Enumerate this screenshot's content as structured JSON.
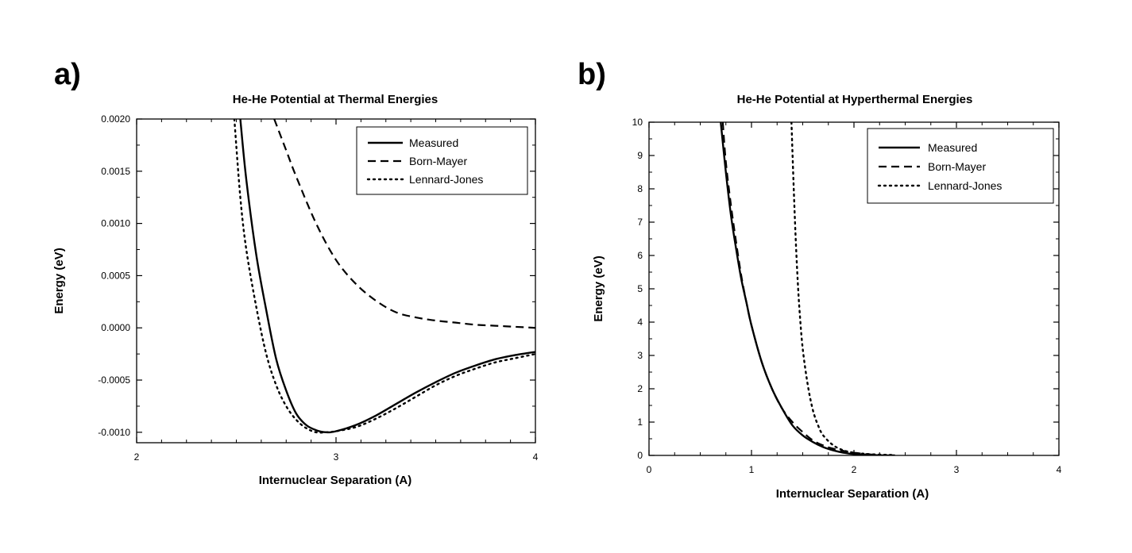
{
  "chart_data": [
    {
      "panel": "a)",
      "type": "line",
      "title": "He-He Potential at Thermal Energies",
      "xlabel": "Internuclear Separation (A)",
      "ylabel": "Energy (eV)",
      "xlim": [
        2,
        4
      ],
      "ylim": [
        -0.0011,
        0.002
      ],
      "xticks": [
        2,
        3,
        4
      ],
      "xtick_labels": [
        "2",
        "3",
        "4"
      ],
      "yticks": [
        0.002,
        0.0015,
        0.001,
        0.0005,
        0.0,
        -0.0005,
        -0.001
      ],
      "ytick_labels": [
        "0.0020",
        "0.0015",
        "0.0010",
        "0.0005",
        "0.0000",
        "-0.0005",
        "-0.0010"
      ],
      "grid": false,
      "legend_position": "top-right",
      "series": [
        {
          "name": "Measured",
          "style": "solid",
          "x": [
            2.52,
            2.55,
            2.6,
            2.65,
            2.7,
            2.75,
            2.8,
            2.85,
            2.9,
            2.95,
            3.0,
            3.1,
            3.2,
            3.3,
            3.4,
            3.5,
            3.6,
            3.7,
            3.8,
            3.9,
            4.0
          ],
          "y": [
            0.002,
            0.00142,
            0.0007,
            0.00017,
            -0.0003,
            -0.0006,
            -0.00082,
            -0.00093,
            -0.00098,
            -0.001,
            -0.00099,
            -0.00093,
            -0.00084,
            -0.00073,
            -0.00062,
            -0.00052,
            -0.00043,
            -0.00036,
            -0.0003,
            -0.00026,
            -0.00023
          ]
        },
        {
          "name": "Born-Mayer",
          "style": "dashed",
          "x": [
            2.69,
            2.75,
            2.8,
            2.9,
            3.0,
            3.1,
            3.2,
            3.3,
            3.4,
            3.5,
            3.6,
            3.7,
            3.8,
            3.9,
            4.0
          ],
          "y": [
            0.002,
            0.0017,
            0.00145,
            0.001,
            0.00065,
            0.00042,
            0.00026,
            0.00015,
            0.0001,
            7e-05,
            5e-05,
            3e-05,
            2e-05,
            1e-05,
            0.0
          ]
        },
        {
          "name": "Lennard-Jones",
          "style": "dotted",
          "x": [
            2.49,
            2.52,
            2.55,
            2.6,
            2.65,
            2.7,
            2.75,
            2.8,
            2.85,
            2.9,
            2.95,
            3.0,
            3.1,
            3.2,
            3.3,
            3.4,
            3.5,
            3.6,
            3.7,
            3.8,
            3.9,
            4.0
          ],
          "y": [
            0.002,
            0.00125,
            0.00075,
            0.0002,
            -0.00025,
            -0.00055,
            -0.00075,
            -0.00088,
            -0.00096,
            -0.001,
            -0.001,
            -0.00099,
            -0.00095,
            -0.00087,
            -0.00077,
            -0.00066,
            -0.00055,
            -0.00046,
            -0.00039,
            -0.00033,
            -0.00029,
            -0.00025
          ]
        }
      ]
    },
    {
      "panel": "b)",
      "type": "line",
      "title": "He-He Potential at Hyperthermal Energies",
      "xlabel": "Internuclear Separation (A)",
      "ylabel": "Energy (eV)",
      "xlim": [
        0,
        4
      ],
      "ylim": [
        0,
        10
      ],
      "xticks": [
        0,
        1,
        2,
        3,
        4
      ],
      "xtick_labels": [
        "0",
        "1",
        "2",
        "3",
        "4"
      ],
      "yticks": [
        0,
        1,
        2,
        3,
        4,
        5,
        6,
        7,
        8,
        9,
        10
      ],
      "ytick_labels": [
        "0",
        "1",
        "2",
        "3",
        "4",
        "5",
        "6",
        "7",
        "8",
        "9",
        "10"
      ],
      "grid": false,
      "legend_position": "top-right",
      "series": [
        {
          "name": "Measured",
          "style": "solid",
          "x": [
            0.7,
            0.75,
            0.8,
            0.85,
            0.9,
            0.95,
            1.0,
            1.1,
            1.2,
            1.3,
            1.4,
            1.5,
            1.6,
            1.7,
            1.8,
            1.9,
            2.0,
            2.2,
            2.4
          ],
          "y": [
            10.0,
            8.5,
            7.2,
            6.2,
            5.3,
            4.6,
            3.9,
            2.8,
            2.0,
            1.4,
            0.9,
            0.6,
            0.4,
            0.25,
            0.15,
            0.08,
            0.04,
            0.01,
            0.0
          ]
        },
        {
          "name": "Born-Mayer",
          "style": "dashed",
          "x": [
            0.72,
            0.75,
            0.8,
            0.85,
            0.9,
            0.95,
            1.0,
            1.1,
            1.2,
            1.3,
            1.4,
            1.5,
            1.6,
            1.7,
            1.8,
            2.0,
            2.2
          ],
          "y": [
            10.0,
            8.8,
            7.5,
            6.4,
            5.4,
            4.6,
            3.9,
            2.8,
            2.0,
            1.4,
            1.0,
            0.7,
            0.45,
            0.3,
            0.2,
            0.08,
            0.02
          ]
        },
        {
          "name": "Lennard-Jones",
          "style": "dotted",
          "x": [
            1.39,
            1.41,
            1.43,
            1.45,
            1.47,
            1.5,
            1.55,
            1.6,
            1.65,
            1.7,
            1.8,
            1.9,
            2.0,
            2.1,
            2.2,
            2.4
          ],
          "y": [
            10.0,
            8.2,
            6.6,
            5.3,
            4.3,
            3.2,
            2.1,
            1.35,
            0.9,
            0.6,
            0.3,
            0.15,
            0.08,
            0.05,
            0.03,
            0.01
          ]
        }
      ]
    }
  ]
}
